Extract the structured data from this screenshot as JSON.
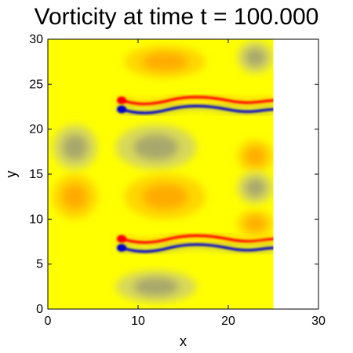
{
  "chart_data": {
    "type": "heatmap",
    "title": "Vorticity at time t = 100.000",
    "xlabel": "x",
    "ylabel": "y",
    "xlim": [
      0,
      30
    ],
    "ylim": [
      0,
      30
    ],
    "xticks": [
      0,
      10,
      20,
      30
    ],
    "yticks": [
      0,
      5,
      10,
      15,
      20,
      25,
      30
    ],
    "grid": false,
    "domain_extent": {
      "x": [
        0,
        25
      ],
      "y": [
        0,
        30
      ]
    },
    "background_color": "#ffff00",
    "colors": {
      "positive_weak": "#ffd500",
      "positive": "#ffa500",
      "positive_strong": "#ff0000",
      "negative_weak": "#d8d85a",
      "negative": "#a0a070",
      "negative_strong": "#0000cc"
    },
    "features": [
      {
        "kind": "vortex",
        "sign": "positive",
        "x": 13,
        "y": 27.5,
        "rx": 4.5,
        "ry": 1.8
      },
      {
        "kind": "vortex",
        "sign": "negative",
        "x": 12,
        "y": 18,
        "rx": 4.5,
        "ry": 2.5
      },
      {
        "kind": "vortex",
        "sign": "positive",
        "x": 13,
        "y": 12.5,
        "rx": 4.5,
        "ry": 2.5
      },
      {
        "kind": "vortex",
        "sign": "negative",
        "x": 12,
        "y": 2.5,
        "rx": 4.5,
        "ry": 1.8
      },
      {
        "kind": "vortex",
        "sign": "positive",
        "x": 3,
        "y": 12.5,
        "rx": 2.5,
        "ry": 2.5
      },
      {
        "kind": "vortex",
        "sign": "negative",
        "x": 3,
        "y": 18,
        "rx": 2.5,
        "ry": 2.5
      },
      {
        "kind": "shear_layer",
        "sign": "positive",
        "y": 23.2,
        "x_start": 8,
        "x_end": 25
      },
      {
        "kind": "shear_layer",
        "sign": "negative",
        "y": 22.2,
        "x_start": 8,
        "x_end": 25
      },
      {
        "kind": "shear_layer",
        "sign": "positive",
        "y": 7.8,
        "x_start": 8,
        "x_end": 25
      },
      {
        "kind": "shear_layer",
        "sign": "negative",
        "y": 6.8,
        "x_start": 8,
        "x_end": 25
      },
      {
        "kind": "edge_patch",
        "sign": "positive",
        "x": 23,
        "y": 17,
        "rx": 2,
        "ry": 1.8
      },
      {
        "kind": "edge_patch",
        "sign": "negative",
        "x": 23,
        "y": 13.5,
        "rx": 2,
        "ry": 1.8
      },
      {
        "kind": "edge_patch",
        "sign": "positive",
        "x": 23,
        "y": 9.5,
        "rx": 2,
        "ry": 1.5
      },
      {
        "kind": "edge_patch",
        "sign": "negative",
        "x": 23,
        "y": 28,
        "rx": 2,
        "ry": 1.8
      }
    ]
  }
}
